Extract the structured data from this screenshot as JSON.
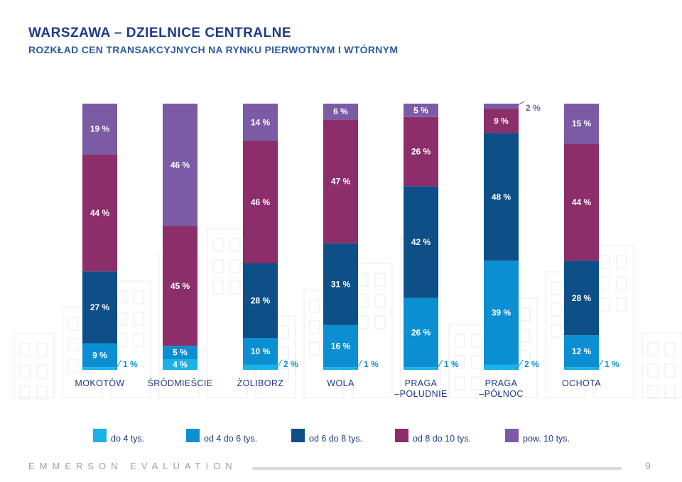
{
  "header": {
    "title": "WARSZAWA – DZIELNICE CENTRALNE",
    "subtitle": "ROZKŁAD CEN TRANSAKCYJNYCH NA RYNKU PIERWOTNYM I WTÓRNYM"
  },
  "footer": {
    "brand": "EMMERSON EVALUATION",
    "page": "9"
  },
  "chart_data": {
    "type": "bar",
    "stacked": true,
    "title": "WARSZAWA – DZIELNICE CENTRALNE",
    "subtitle": "ROZKŁAD CEN TRANSAKCYJNYCH NA RYNKU PIERWOTNYM I WTÓRNYM",
    "categories": [
      [
        "MOKOTÓW"
      ],
      [
        "ŚRÓDMIEŚCIE"
      ],
      [
        "ŻOLIBORZ"
      ],
      [
        "WOLA"
      ],
      [
        "PRAGA",
        "–POŁUDNIE"
      ],
      [
        "PRAGA",
        "–PÓŁNOC"
      ],
      [
        "OCHOTA"
      ]
    ],
    "unit": "%",
    "ylim": [
      0,
      100
    ],
    "legend_position": "bottom",
    "series": [
      {
        "name": "do 4 tys.",
        "color": "#1ab2e8",
        "values": [
          1,
          4,
          2,
          1,
          1,
          2,
          1
        ]
      },
      {
        "name": "od 4 do 6 tys.",
        "color": "#0b8fd2",
        "values": [
          9,
          5,
          10,
          16,
          26,
          39,
          12
        ]
      },
      {
        "name": "od 6 do 8 tys.",
        "color": "#0d4f86",
        "values": [
          27,
          0,
          28,
          31,
          42,
          48,
          28
        ]
      },
      {
        "name": "od 8 do 10 tys.",
        "color": "#8c2e6a",
        "values": [
          44,
          45,
          46,
          47,
          26,
          9,
          44
        ]
      },
      {
        "name": "pow. 10 tys.",
        "color": "#7b5ba6",
        "values": [
          19,
          46,
          14,
          6,
          5,
          2,
          15
        ]
      }
    ],
    "labels": [
      [
        "1 %",
        "9 %",
        "27 %",
        "44 %",
        "19 %"
      ],
      [
        "4 %",
        "5 %",
        "",
        "45 %",
        "46 %"
      ],
      [
        "2 %",
        "10 %",
        "28 %",
        "46 %",
        "14 %"
      ],
      [
        "1 %",
        "16 %",
        "31 %",
        "47 %",
        "6 %"
      ],
      [
        "1 %",
        "26 %",
        "42 %",
        "26 %",
        "5 %"
      ],
      [
        "2 %",
        "39 %",
        "48 %",
        "9 %",
        "2 %"
      ],
      [
        "1 %",
        "12 %",
        "28 %",
        "44 %",
        "15 %"
      ]
    ]
  }
}
